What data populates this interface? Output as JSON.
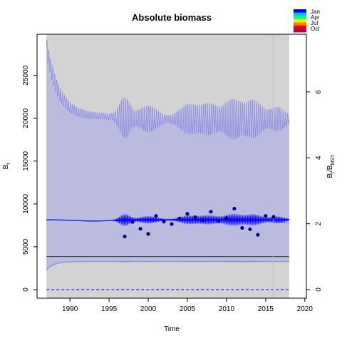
{
  "chart_data": {
    "type": "line",
    "title": "Absolute biomass",
    "xlabel": "Time",
    "ylabel": "B",
    "ylabel_sub": "t",
    "y2label": "B",
    "y2label_sub": "t",
    "y2label_suffix": "/B",
    "y2label_suffix_sub": "MSY",
    "xlim": [
      1985.8,
      2020.2
    ],
    "ylim": [
      -1000,
      29800
    ],
    "y2lim": [
      -0.26,
      7.75
    ],
    "x_ticks": [
      1990,
      1995,
      2000,
      2005,
      2010,
      2015,
      2020
    ],
    "y_ticks": [
      0,
      5000,
      10000,
      15000,
      20000,
      25000
    ],
    "y2_ticks": [
      0,
      2,
      4,
      6
    ],
    "grid": false,
    "confidence_band": {
      "x_start": 1987.0,
      "x_end": 2018.0,
      "color": "#bbbbdd"
    },
    "forecast_region": {
      "x_start": 2016.0,
      "x_end": 2018.0,
      "color": "#d3d3d3"
    },
    "bmsy_level": 3850,
    "zero_dashed_level": 0,
    "vline_at": 2016.0,
    "observations": {
      "x": [
        1997.0,
        1998.0,
        1999.0,
        2000.0,
        2001.0,
        2002.0,
        2003.0,
        2004.0,
        2005.0,
        2006.0,
        2007.0,
        2008.0,
        2009.0,
        2010.0,
        2011.0,
        2012.0,
        2013.0,
        2014.0,
        2015.0,
        2016.0
      ],
      "y": [
        6200,
        7900,
        7100,
        6500,
        8600,
        7950,
        7650,
        8300,
        8850,
        8450,
        8100,
        9100,
        8000,
        8350,
        9450,
        7200,
        7050,
        6400,
        8600,
        8500
      ]
    },
    "legend": {
      "position": "top-right",
      "entries": [
        "Jan",
        "Apr",
        "Jul",
        "Oct"
      ],
      "colors": [
        "#0000ff",
        "#00bfff",
        "#00ff80",
        "#ffff00",
        "#ff8000",
        "#ff0000",
        "#a00060"
      ]
    },
    "colors": {
      "band": "#bbbbdd",
      "band_edge": "#8080e8",
      "estimate": "#0000ff",
      "observation": "#00008b",
      "bmsy": "#000000",
      "forecast_bg": "#d3d3d3",
      "vline": "#c0c0c0"
    }
  }
}
